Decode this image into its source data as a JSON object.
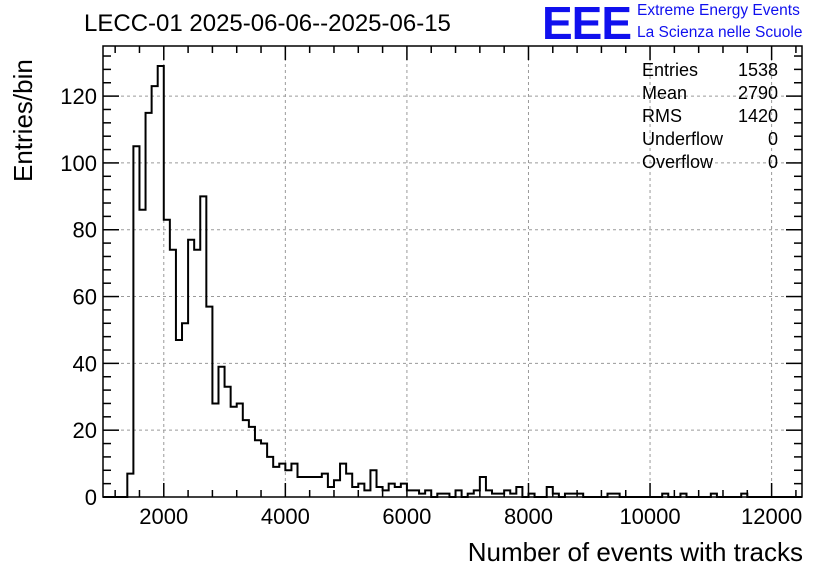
{
  "header": {
    "title": "LECC-01 2025-06-06--2025-06-15",
    "logo_mark": "EEE",
    "logo_line1": "Extreme Energy Events",
    "logo_line2": "La Scienza nelle Scuole"
  },
  "stats": [
    {
      "label": "Entries",
      "value": "1538"
    },
    {
      "label": "Mean",
      "value": "2790"
    },
    {
      "label": "RMS",
      "value": "1420"
    },
    {
      "label": "Underflow",
      "value": "0"
    },
    {
      "label": "Overflow",
      "value": "0"
    }
  ],
  "colors": {
    "logo": "#1010ee",
    "line": "#000000",
    "grid": "#9a9a9a"
  },
  "chart_data": {
    "type": "bar",
    "subtype": "step-histogram",
    "xlabel": "Number of events with tracks",
    "ylabel": "Entries/bin",
    "xlim": [
      1000,
      12500
    ],
    "ylim": [
      0,
      135
    ],
    "bin_start": 1000,
    "bin_width": 100,
    "x_ticks": [
      2000,
      4000,
      6000,
      8000,
      10000,
      12000
    ],
    "y_ticks": [
      0,
      20,
      40,
      60,
      80,
      100,
      120
    ],
    "grid": true,
    "values": [
      0,
      0,
      0,
      0,
      7,
      105,
      86,
      115,
      123,
      129,
      83,
      74,
      47,
      52,
      77,
      74,
      90,
      57,
      28,
      39,
      33,
      27,
      28,
      23,
      21,
      17,
      16,
      12,
      9,
      10,
      8,
      10,
      6,
      6,
      6,
      6,
      7,
      3,
      5,
      10,
      7,
      3,
      4,
      2,
      8,
      3,
      2,
      4,
      3,
      4,
      2,
      2,
      1,
      2,
      0,
      1,
      1,
      0,
      2,
      0,
      1,
      2,
      6,
      2,
      1,
      1,
      2,
      1,
      3,
      0,
      1,
      0,
      0,
      3,
      1,
      0,
      1,
      1,
      1,
      0,
      0,
      0,
      0,
      1,
      1,
      0,
      0,
      0,
      0,
      0,
      0,
      0,
      1,
      0,
      0,
      1,
      0,
      0,
      0,
      0,
      1,
      0,
      0,
      0,
      0,
      1,
      0,
      0,
      0,
      0,
      0,
      0,
      0,
      0,
      0
    ]
  }
}
